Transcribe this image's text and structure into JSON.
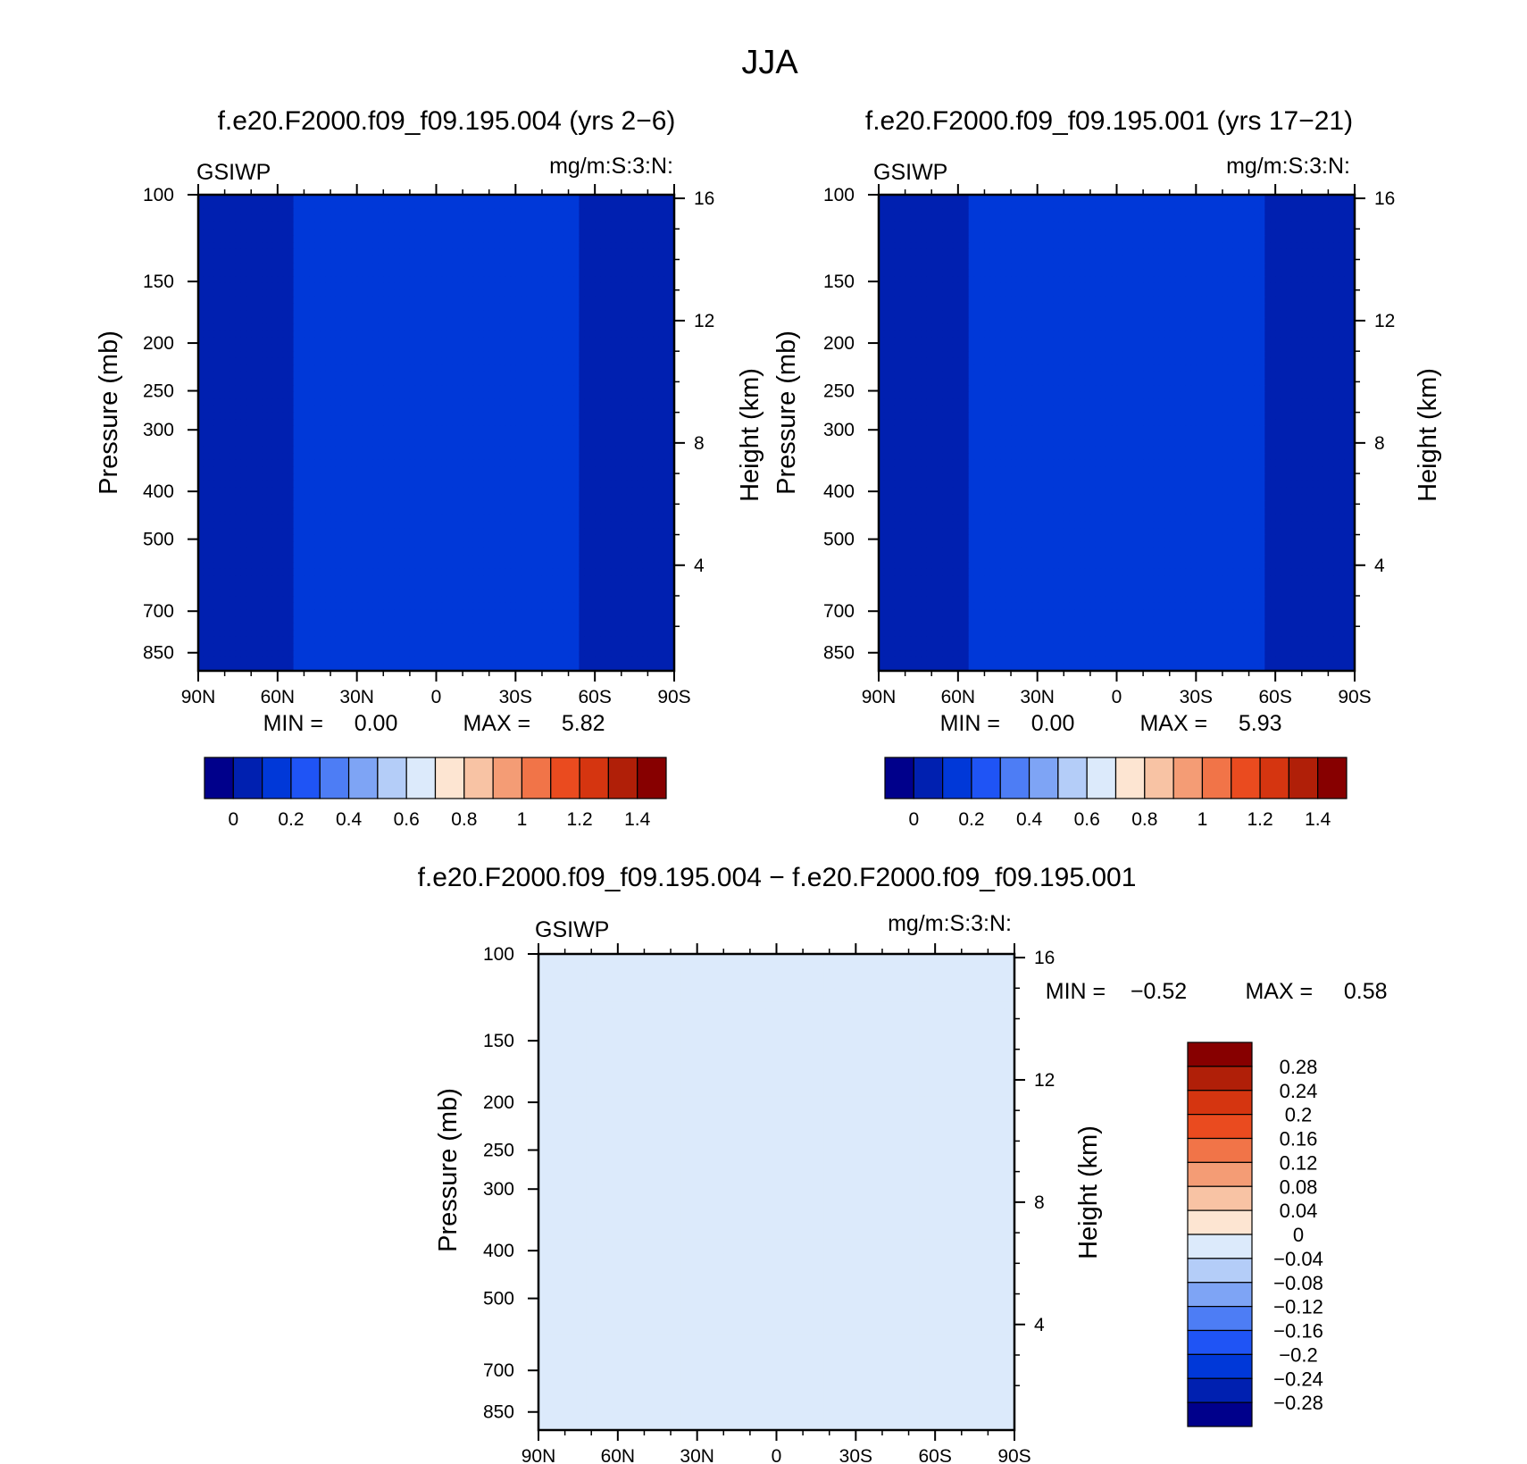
{
  "figure": {
    "title": "JJA"
  },
  "palette_abs": [
    "#00008b",
    "#0020b0",
    "#0038d8",
    "#1f54f5",
    "#4d7df5",
    "#7ea4f5",
    "#b4cdf8",
    "#dceafb",
    "#fde5d2",
    "#f8c3a4",
    "#f49c75",
    "#f17448",
    "#ea4b1f",
    "#d53510",
    "#b01f08",
    "#870000"
  ],
  "palette_diff": [
    "#00008b",
    "#0020b0",
    "#0038d8",
    "#1f54f5",
    "#4d7df5",
    "#7ea4f5",
    "#b4cdf8",
    "#dceafb",
    "#fde5d2",
    "#f8c3a4",
    "#f49c75",
    "#f17448",
    "#ea4b1f",
    "#d53510",
    "#b01f08",
    "#870000"
  ],
  "chart_data": [
    {
      "type": "heatmap",
      "id": "panel-left",
      "title": "f.e20.F2000.f09_f09.195.004 (yrs 2−6)",
      "variable": "GSIWP",
      "units": "mg/m:S:3:N:",
      "ylabel": "Pressure (mb)",
      "y2label": "Height (km)",
      "x_ticks": [
        "90N",
        "60N",
        "30N",
        "0",
        "30S",
        "60S",
        "90S"
      ],
      "p_ticks": [
        "100",
        "150",
        "200",
        "250",
        "300",
        "400",
        "500",
        "700",
        "850"
      ],
      "h_ticks": [
        "16",
        "12",
        "8",
        "4"
      ],
      "xlim_lat": [
        90,
        -90
      ],
      "plim_mb": [
        100,
        925
      ],
      "min_text": "MIN =     0.00",
      "max_text": "MAX =     5.82",
      "colorbar_labels": [
        "0",
        "0.2",
        "0.4",
        "0.6",
        "0.8",
        "1",
        "1.2",
        "1.4"
      ],
      "field_variant": 0
    },
    {
      "type": "heatmap",
      "id": "panel-right",
      "title": "f.e20.F2000.f09_f09.195.001 (yrs 17−21)",
      "variable": "GSIWP",
      "units": "mg/m:S:3:N:",
      "ylabel": "Pressure (mb)",
      "y2label": "Height (km)",
      "x_ticks": [
        "90N",
        "60N",
        "30N",
        "0",
        "30S",
        "60S",
        "90S"
      ],
      "p_ticks": [
        "100",
        "150",
        "200",
        "250",
        "300",
        "400",
        "500",
        "700",
        "850"
      ],
      "h_ticks": [
        "16",
        "12",
        "8",
        "4"
      ],
      "xlim_lat": [
        90,
        -90
      ],
      "plim_mb": [
        100,
        925
      ],
      "min_text": "MIN =     0.00",
      "max_text": "MAX =     5.93",
      "colorbar_labels": [
        "0",
        "0.2",
        "0.4",
        "0.6",
        "0.8",
        "1",
        "1.2",
        "1.4"
      ],
      "field_variant": 1
    },
    {
      "type": "heatmap",
      "id": "panel-diff",
      "title": "f.e20.F2000.f09_f09.195.004 − f.e20.F2000.f09_f09.195.001",
      "variable": "GSIWP",
      "units": "mg/m:S:3:N:",
      "ylabel": "Pressure (mb)",
      "y2label": "Height (km)",
      "x_ticks": [
        "90N",
        "60N",
        "30N",
        "0",
        "30S",
        "60S",
        "90S"
      ],
      "p_ticks": [
        "100",
        "150",
        "200",
        "250",
        "300",
        "400",
        "500",
        "700",
        "850"
      ],
      "h_ticks": [
        "16",
        "12",
        "8",
        "4"
      ],
      "xlim_lat": [
        90,
        -90
      ],
      "plim_mb": [
        100,
        925
      ],
      "min_text": "MIN =    −0.52",
      "max_text": "MAX =     0.58",
      "colorbar_labels": [
        "0.28",
        "0.24",
        "0.2",
        "0.16",
        "0.12",
        "0.08",
        "0.04",
        "0",
        "−0.04",
        "−0.08",
        "−0.12",
        "−0.16",
        "−0.2",
        "−0.24",
        "−0.28"
      ]
    }
  ]
}
